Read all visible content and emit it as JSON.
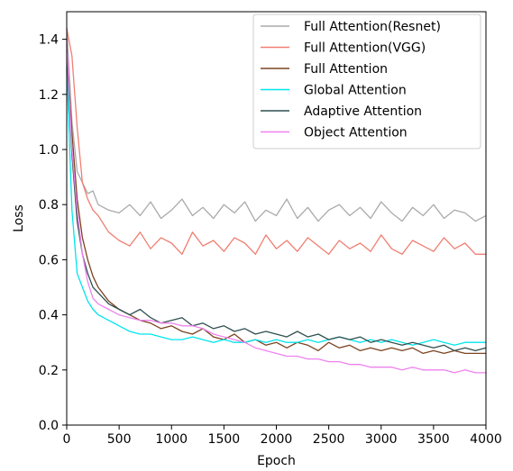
{
  "chart_data": {
    "type": "line",
    "title": "",
    "xlabel": "Epoch",
    "ylabel": "Loss",
    "xlim": [
      0,
      4000
    ],
    "ylim": [
      0,
      1.5
    ],
    "xticks": [
      0,
      500,
      1000,
      1500,
      2000,
      2500,
      3000,
      3500,
      4000
    ],
    "xtick_labels": [
      "0",
      "500",
      "1000",
      "1500",
      "2000",
      "2500",
      "3000",
      "3500",
      "4000"
    ],
    "yticks": [
      0.0,
      0.2,
      0.4,
      0.6,
      0.8,
      1.0,
      1.2,
      1.4
    ],
    "ytick_labels": [
      "0.0",
      "0.2",
      "0.4",
      "0.6",
      "0.8",
      "1.0",
      "1.2",
      "1.4"
    ],
    "grid": false,
    "legend_position": "top-right",
    "x": [
      0,
      50,
      100,
      150,
      200,
      250,
      300,
      400,
      500,
      600,
      700,
      800,
      900,
      1000,
      1100,
      1200,
      1300,
      1400,
      1500,
      1600,
      1700,
      1800,
      1900,
      2000,
      2100,
      2200,
      2300,
      2400,
      2500,
      2600,
      2700,
      2800,
      2900,
      3000,
      3100,
      3200,
      3300,
      3400,
      3500,
      3600,
      3700,
      3800,
      3900,
      4000
    ],
    "series": [
      {
        "name": "Full Attention(Resnet)",
        "color": "#aaaaaa",
        "values": [
          1.44,
          1.1,
          0.92,
          0.88,
          0.84,
          0.85,
          0.8,
          0.78,
          0.77,
          0.8,
          0.76,
          0.81,
          0.75,
          0.78,
          0.82,
          0.76,
          0.79,
          0.75,
          0.8,
          0.77,
          0.81,
          0.74,
          0.78,
          0.76,
          0.82,
          0.75,
          0.79,
          0.74,
          0.78,
          0.8,
          0.76,
          0.79,
          0.75,
          0.81,
          0.77,
          0.74,
          0.79,
          0.76,
          0.8,
          0.75,
          0.78,
          0.77,
          0.74,
          0.76
        ]
      },
      {
        "name": "Full Attention(VGG)",
        "color": "#f07f72",
        "values": [
          1.44,
          1.34,
          1.08,
          0.88,
          0.82,
          0.78,
          0.76,
          0.7,
          0.67,
          0.65,
          0.7,
          0.64,
          0.68,
          0.66,
          0.62,
          0.7,
          0.65,
          0.67,
          0.63,
          0.68,
          0.66,
          0.62,
          0.69,
          0.64,
          0.67,
          0.63,
          0.68,
          0.65,
          0.62,
          0.67,
          0.64,
          0.66,
          0.63,
          0.69,
          0.64,
          0.62,
          0.67,
          0.65,
          0.63,
          0.68,
          0.64,
          0.66,
          0.62,
          0.62
        ]
      },
      {
        "name": "Full Attention",
        "color": "#7b4320",
        "values": [
          1.38,
          1.06,
          0.82,
          0.68,
          0.6,
          0.54,
          0.5,
          0.45,
          0.42,
          0.4,
          0.38,
          0.37,
          0.35,
          0.36,
          0.34,
          0.33,
          0.35,
          0.32,
          0.31,
          0.33,
          0.3,
          0.31,
          0.29,
          0.3,
          0.28,
          0.3,
          0.29,
          0.27,
          0.3,
          0.28,
          0.29,
          0.27,
          0.28,
          0.27,
          0.28,
          0.27,
          0.28,
          0.26,
          0.27,
          0.26,
          0.27,
          0.26,
          0.26,
          0.26
        ]
      },
      {
        "name": "Global Attention",
        "color": "#00e5ee",
        "values": [
          1.3,
          0.78,
          0.55,
          0.5,
          0.45,
          0.42,
          0.4,
          0.38,
          0.36,
          0.34,
          0.33,
          0.33,
          0.32,
          0.31,
          0.31,
          0.32,
          0.31,
          0.3,
          0.31,
          0.3,
          0.3,
          0.31,
          0.3,
          0.31,
          0.3,
          0.3,
          0.31,
          0.3,
          0.31,
          0.32,
          0.31,
          0.3,
          0.31,
          0.3,
          0.31,
          0.3,
          0.29,
          0.3,
          0.31,
          0.3,
          0.29,
          0.3,
          0.3,
          0.3
        ]
      },
      {
        "name": "Adaptive Attention",
        "color": "#2f4f4f",
        "values": [
          1.36,
          0.98,
          0.74,
          0.62,
          0.55,
          0.5,
          0.48,
          0.44,
          0.42,
          0.4,
          0.42,
          0.39,
          0.37,
          0.38,
          0.39,
          0.36,
          0.37,
          0.35,
          0.36,
          0.34,
          0.35,
          0.33,
          0.34,
          0.33,
          0.32,
          0.34,
          0.32,
          0.33,
          0.31,
          0.32,
          0.31,
          0.32,
          0.3,
          0.31,
          0.3,
          0.29,
          0.3,
          0.29,
          0.28,
          0.29,
          0.27,
          0.28,
          0.27,
          0.28
        ]
      },
      {
        "name": "Object Attention",
        "color": "#ee82ee",
        "values": [
          1.4,
          1.0,
          0.78,
          0.62,
          0.52,
          0.46,
          0.44,
          0.42,
          0.4,
          0.39,
          0.38,
          0.38,
          0.37,
          0.37,
          0.36,
          0.36,
          0.35,
          0.33,
          0.32,
          0.31,
          0.3,
          0.28,
          0.27,
          0.26,
          0.25,
          0.25,
          0.24,
          0.24,
          0.23,
          0.23,
          0.22,
          0.22,
          0.21,
          0.21,
          0.21,
          0.2,
          0.21,
          0.2,
          0.2,
          0.2,
          0.19,
          0.2,
          0.19,
          0.19
        ]
      }
    ]
  }
}
